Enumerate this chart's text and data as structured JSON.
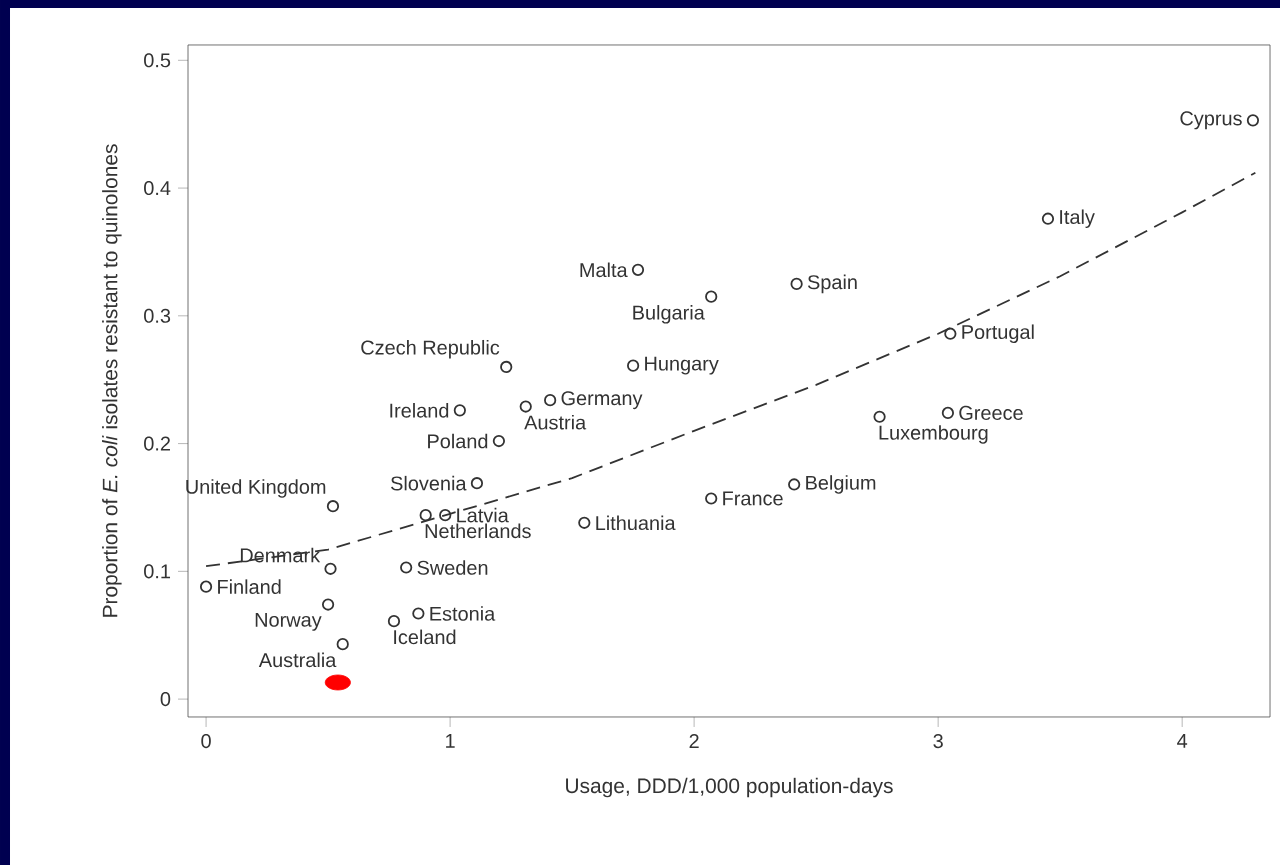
{
  "chart_data": {
    "type": "scatter",
    "xlabel": "Usage, DDD/1,000 population-days",
    "ylabel": "Proportion of *E. coli* isolates resistant to quinolones",
    "xlim": [
      -0.074,
      4.36
    ],
    "ylim": [
      -0.014,
      0.512
    ],
    "xticks": [
      0,
      1,
      2,
      3,
      4
    ],
    "yticks": [
      0,
      0.1,
      0.2,
      0.3,
      0.4,
      0.5
    ],
    "series": [
      {
        "color": "#333333",
        "marker": "circle",
        "x": [
          4.29,
          3.45,
          1.77,
          2.42,
          2.07,
          3.05,
          1.23,
          1.75,
          1.41,
          1.31,
          1.04,
          2.76,
          3.04,
          1.2,
          1.11,
          2.41,
          2.07,
          0.52,
          0.9,
          0.98,
          1.55,
          0.51,
          0.82,
          0.0,
          0.5,
          0.87,
          0.77,
          0.56
        ],
        "values": [
          0.453,
          0.376,
          0.336,
          0.325,
          0.315,
          0.286,
          0.26,
          0.261,
          0.234,
          0.229,
          0.226,
          0.221,
          0.224,
          0.202,
          0.169,
          0.168,
          0.157,
          0.151,
          0.144,
          0.144,
          0.138,
          0.102,
          0.103,
          0.088,
          0.074,
          0.067,
          0.061,
          0.043
        ]
      },
      {
        "color": "#ff0000",
        "marker": "circle",
        "x": [
          0.54
        ],
        "values": [
          0.013
        ]
      },
      {
        "type": "line",
        "color": "#333333",
        "line_style": "dashed",
        "marker": "none",
        "x": [
          0,
          0.5,
          1,
          1.5,
          2,
          2.5,
          3,
          3.5,
          4,
          4.3
        ],
        "values": [
          0.104,
          0.117,
          0.145,
          0.173,
          0.21,
          0.246,
          0.286,
          0.331,
          0.381,
          0.412
        ]
      }
    ],
    "annotations": [
      {
        "text": "Cyprus",
        "x": 4.29,
        "y": 0.453
      },
      {
        "text": "Italy",
        "x": 3.45,
        "y": 0.376
      },
      {
        "text": "Malta",
        "x": 1.77,
        "y": 0.336
      },
      {
        "text": "Spain",
        "x": 2.42,
        "y": 0.325
      },
      {
        "text": "Bulgaria",
        "x": 2.07,
        "y": 0.315
      },
      {
        "text": "Portugal",
        "x": 3.05,
        "y": 0.286
      },
      {
        "text": "Czech Republic",
        "x": 1.23,
        "y": 0.26
      },
      {
        "text": "Hungary",
        "x": 1.75,
        "y": 0.261
      },
      {
        "text": "Germany",
        "x": 1.41,
        "y": 0.234
      },
      {
        "text": "Austria",
        "x": 1.31,
        "y": 0.229
      },
      {
        "text": "Ireland",
        "x": 1.04,
        "y": 0.226
      },
      {
        "text": "Luxembourg",
        "x": 2.76,
        "y": 0.221
      },
      {
        "text": "Greece",
        "x": 3.04,
        "y": 0.224
      },
      {
        "text": "Poland",
        "x": 1.2,
        "y": 0.202
      },
      {
        "text": "Slovenia",
        "x": 1.11,
        "y": 0.169
      },
      {
        "text": "Belgium",
        "x": 2.41,
        "y": 0.168
      },
      {
        "text": "France",
        "x": 2.07,
        "y": 0.157
      },
      {
        "text": "United Kingdom",
        "x": 0.52,
        "y": 0.151
      },
      {
        "text": "Netherlands",
        "x": 0.9,
        "y": 0.144
      },
      {
        "text": "Latvia",
        "x": 0.98,
        "y": 0.144
      },
      {
        "text": "Lithuania",
        "x": 1.55,
        "y": 0.138
      },
      {
        "text": "Denmark",
        "x": 0.51,
        "y": 0.102
      },
      {
        "text": "Sweden",
        "x": 0.82,
        "y": 0.103
      },
      {
        "text": "Finland",
        "x": 0.0,
        "y": 0.088
      },
      {
        "text": "Norway",
        "x": 0.5,
        "y": 0.074
      },
      {
        "text": "Estonia",
        "x": 0.87,
        "y": 0.067
      },
      {
        "text": "Iceland",
        "x": 0.77,
        "y": 0.061
      },
      {
        "text": "Australia",
        "x": 0.56,
        "y": 0.043
      }
    ]
  }
}
